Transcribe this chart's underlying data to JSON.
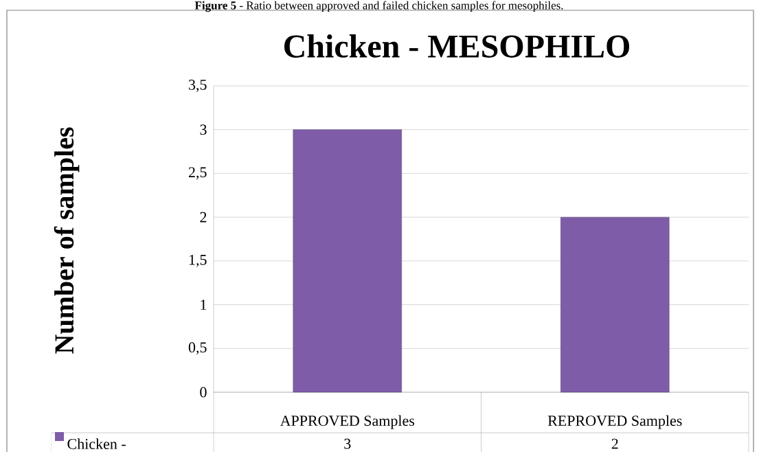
{
  "chart_data": {
    "type": "bar",
    "title": "Chicken - MESOPHILO",
    "annotations": [
      "**Figure 5** - Ratio between approved and failed chicken samples for mesophiles."
    ],
    "ylabel": "Number of samples",
    "categories": [
      "APPROVED Samples",
      "REPROVED Samples"
    ],
    "series": [
      {
        "name": "Chicken -",
        "color": "#7e5ca8",
        "values": [
          3,
          2
        ]
      }
    ],
    "ylim": [
      0,
      3.5
    ],
    "yticks": [
      {
        "value": 0,
        "label": "0"
      },
      {
        "value": 0.5,
        "label": "0,5"
      },
      {
        "value": 1,
        "label": "1"
      },
      {
        "value": 1.5,
        "label": "1,5"
      },
      {
        "value": 2,
        "label": "2"
      },
      {
        "value": 2.5,
        "label": "2,5"
      },
      {
        "value": 3,
        "label": "3"
      },
      {
        "value": 3.5,
        "label": "3,5"
      }
    ],
    "grid": "y",
    "legend": "bottom left",
    "data_labels": true
  }
}
